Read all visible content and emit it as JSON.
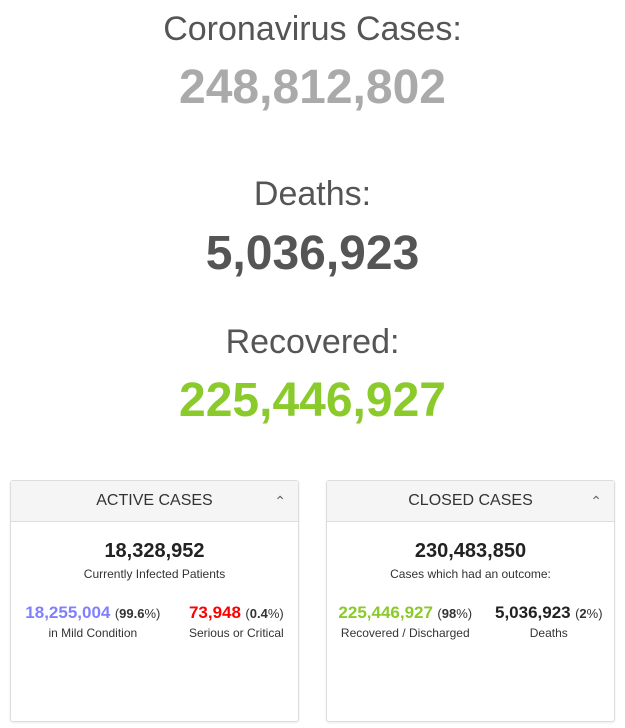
{
  "main": {
    "cases_label": "Coronavirus Cases:",
    "cases_value": "248,812,802",
    "deaths_label": "Deaths:",
    "deaths_value": "5,036,923",
    "recovered_label": "Recovered:",
    "recovered_value": "225,446,927"
  },
  "active": {
    "title": "ACTIVE CASES",
    "total": "18,328,952",
    "total_caption": "Currently Infected Patients",
    "mild_value": "18,255,004",
    "mild_pct": "99.6",
    "mild_caption": "in Mild Condition",
    "serious_value": "73,948",
    "serious_pct": "0.4",
    "serious_caption": "Serious or Critical"
  },
  "closed": {
    "title": "CLOSED CASES",
    "total": "230,483,850",
    "total_caption": "Cases which had an outcome:",
    "recovered_value": "225,446,927",
    "recovered_pct": "98",
    "recovered_caption": "Recovered / Discharged",
    "deaths_value": "5,036,923",
    "deaths_pct": "2",
    "deaths_caption": "Deaths"
  },
  "colors": {
    "cases": "#aaaaaa",
    "deaths": "#555555",
    "recovered": "#8ACA2B",
    "mild": "#8080FF",
    "serious": "#FF0000"
  },
  "icons": {
    "collapse": "chevron-up-icon"
  }
}
